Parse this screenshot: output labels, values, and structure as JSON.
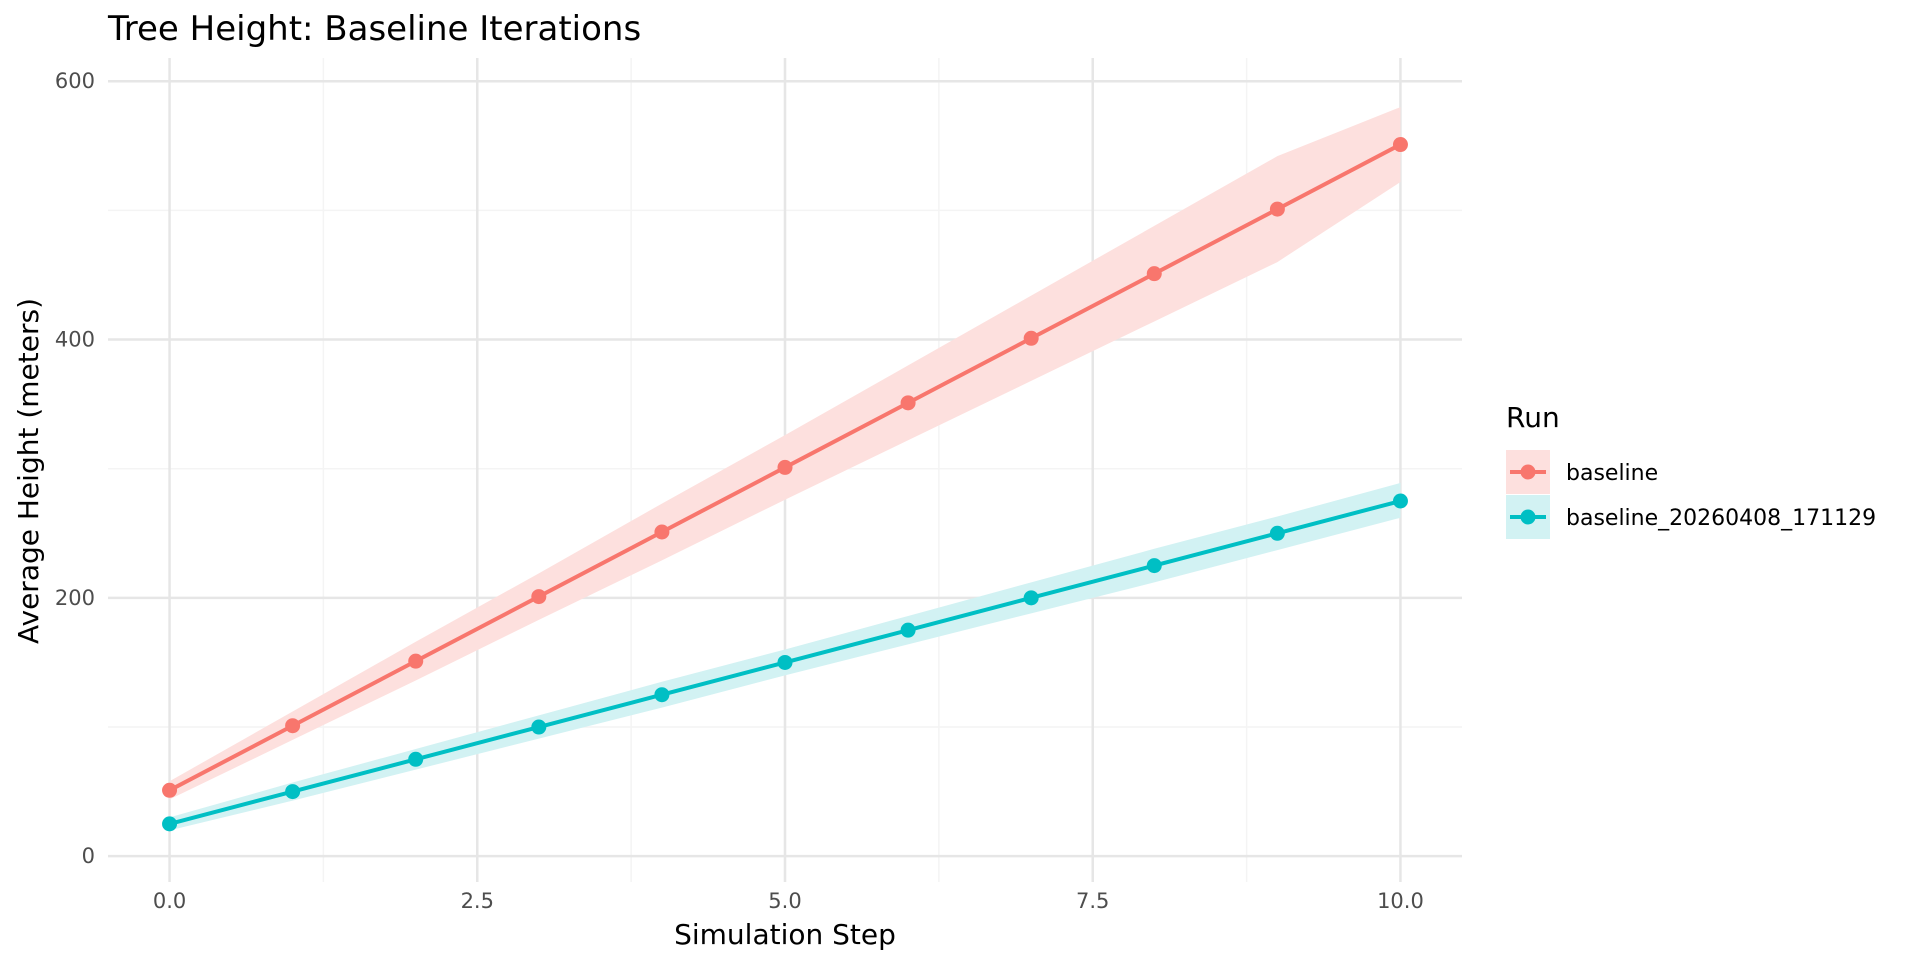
{
  "chart_data": {
    "type": "line",
    "title": "Tree Height: Baseline Iterations",
    "xlabel": "Simulation Step",
    "ylabel": "Average Height (meters)",
    "xlim": [
      -0.5,
      10.5
    ],
    "ylim": [
      0,
      600
    ],
    "x_ticks": [
      0.0,
      2.5,
      5.0,
      7.5,
      10.0
    ],
    "x_tick_labels": [
      "0.0",
      "2.5",
      "5.0",
      "7.5",
      "10.0"
    ],
    "y_ticks": [
      0,
      200,
      400,
      600
    ],
    "y_tick_labels": [
      "0",
      "200",
      "400",
      "600"
    ],
    "x_minor_ticks": [
      1.25,
      3.75,
      6.25,
      8.75
    ],
    "y_minor_ticks": [
      100,
      300,
      500
    ],
    "grid": true,
    "legend": {
      "title": "Run",
      "placement": "right"
    },
    "x": [
      0,
      1,
      2,
      3,
      4,
      5,
      6,
      7,
      8,
      9,
      10
    ],
    "series": [
      {
        "name": "baseline",
        "color": "#F8766D",
        "band_color": "#FDE0DE",
        "values": [
          51,
          101,
          151,
          201,
          251,
          301,
          351,
          401,
          451,
          501,
          551
        ],
        "lower": [
          44,
          90,
          136,
          183,
          229,
          276,
          322,
          368,
          414,
          460,
          522
        ],
        "upper": [
          58,
          112,
          166,
          219,
          273,
          326,
          380,
          434,
          488,
          542,
          580
        ]
      },
      {
        "name": "baseline_20260408_171129",
        "color": "#00BFC4",
        "band_color": "#D2F2F3",
        "values": [
          25,
          50,
          75,
          100,
          125,
          150,
          175,
          200,
          225,
          250,
          275
        ],
        "lower": [
          20,
          43,
          67,
          91,
          115,
          140,
          164,
          188,
          212,
          237,
          262
        ],
        "upper": [
          30,
          57,
          83,
          109,
          135,
          160,
          186,
          212,
          238,
          263,
          289
        ]
      }
    ]
  }
}
